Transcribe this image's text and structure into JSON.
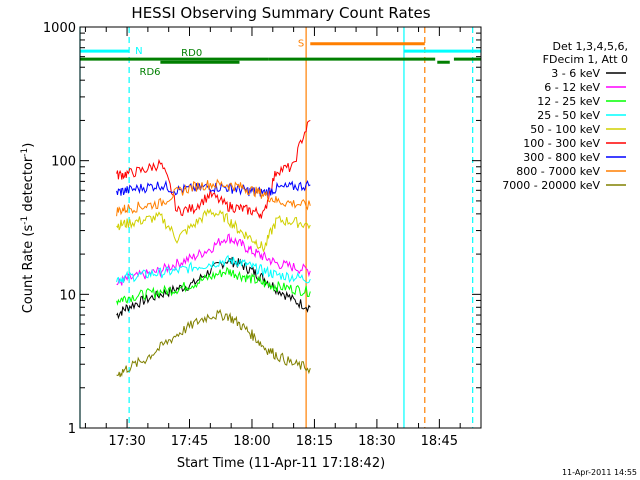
{
  "chart_data": {
    "type": "line",
    "title": "HESSI Observing Summary Count Rates",
    "xlabel": "Start Time (11-Apr-11 17:18:42)",
    "ylabel_parts": [
      "Count Rate (s",
      "-1",
      " detector",
      "-1",
      ")"
    ],
    "yscale": "log",
    "ylim": [
      1,
      1000
    ],
    "yticks": [
      1,
      10,
      100,
      1000
    ],
    "xlim_minutes": [
      1038.7,
      1135.0
    ],
    "xticks": [
      {
        "label": "17:30",
        "minute": 1050
      },
      {
        "label": "17:45",
        "minute": 1065
      },
      {
        "label": "18:00",
        "minute": 1080
      },
      {
        "label": "18:15",
        "minute": 1095
      },
      {
        "label": "18:30",
        "minute": 1110
      },
      {
        "label": "18:45",
        "minute": 1125
      }
    ],
    "legend": {
      "placement": "right",
      "header": [
        "Det 1,3,4,5,6,",
        "FDecim 1, Att 0"
      ],
      "entries": [
        {
          "label": "3 - 6 keV",
          "color": "#000000"
        },
        {
          "label": "6 - 12 keV",
          "color": "#ff00ff"
        },
        {
          "label": "12 - 25 keV",
          "color": "#00ff00"
        },
        {
          "label": "25 - 50 keV",
          "color": "#00ffff"
        },
        {
          "label": "50 - 100 keV",
          "color": "#d0d000"
        },
        {
          "label": "100 - 300 keV",
          "color": "#ff0000"
        },
        {
          "label": "300 - 800 keV",
          "color": "#0000ff"
        },
        {
          "label": "800 - 7000 keV",
          "color": "#ff7f00"
        },
        {
          "label": "7000 - 20000 keV",
          "color": "#808000"
        }
      ]
    },
    "flag_bars": [
      {
        "label": "N",
        "color": "#00ffff",
        "level": 660,
        "label_side": "right_of_first",
        "segments": [
          [
            1038.7,
            1050.5
          ],
          [
            1116.5,
            1135.0
          ]
        ]
      },
      {
        "label": "S",
        "color": "#ff7f00",
        "level": 750,
        "label_side": "left_of_first",
        "segments": [
          [
            1094.0,
            1121.5
          ]
        ]
      },
      {
        "label": "RD0",
        "color": "#007f00",
        "level": 575,
        "label_side": "above_first",
        "segments": [
          [
            1038.7,
            1084.0
          ],
          [
            1084.0,
            1124.0
          ],
          [
            1128.5,
            1135.0
          ]
        ]
      },
      {
        "label": "RD6",
        "color": "#007f00",
        "level": 545,
        "label_side": "below_first",
        "segments": [
          [
            1058.0,
            1077.0
          ],
          [
            1124.5,
            1127.5
          ]
        ]
      }
    ],
    "vertical_lines": [
      {
        "minute": 1038.7,
        "color": "#00ffff",
        "style": "solid"
      },
      {
        "minute": 1050.5,
        "color": "#00ffff",
        "style": "dashed"
      },
      {
        "minute": 1093.0,
        "color": "#ff7f00",
        "style": "solid"
      },
      {
        "minute": 1116.5,
        "color": "#00ffff",
        "style": "solid"
      },
      {
        "minute": 1121.5,
        "color": "#ff7f00",
        "style": "dashed"
      },
      {
        "minute": 1133.0,
        "color": "#00ffff",
        "style": "dashed"
      }
    ],
    "series": [
      {
        "name": "3 - 6 keV",
        "color": "#000000",
        "x": [
          1047.5,
          1050,
          1054,
          1058,
          1062,
          1066,
          1070,
          1074,
          1077,
          1080,
          1083,
          1086,
          1090,
          1094
        ],
        "y": [
          7,
          8,
          9,
          10,
          11,
          12,
          15,
          18,
          17,
          15,
          13,
          11,
          9,
          8
        ]
      },
      {
        "name": "6 - 12 keV",
        "color": "#ff00ff",
        "x": [
          1047.5,
          1050,
          1054,
          1058,
          1062,
          1066,
          1070,
          1074,
          1077,
          1080,
          1083,
          1086,
          1090,
          1094
        ],
        "y": [
          12,
          13,
          14,
          15,
          17,
          19,
          22,
          27,
          24,
          21,
          19,
          17,
          16,
          15
        ]
      },
      {
        "name": "12 - 25 keV",
        "color": "#00ff00",
        "x": [
          1047.5,
          1050,
          1054,
          1058,
          1062,
          1066,
          1070,
          1074,
          1077,
          1080,
          1083,
          1086,
          1090,
          1094
        ],
        "y": [
          9,
          9.5,
          10,
          10.5,
          11,
          12,
          13.5,
          15,
          14,
          13,
          12,
          11.5,
          11,
          10.5
        ]
      },
      {
        "name": "25 - 50 keV",
        "color": "#00ffff",
        "x": [
          1047.5,
          1050,
          1054,
          1058,
          1062,
          1066,
          1070,
          1074,
          1077,
          1080,
          1083,
          1086,
          1090,
          1094
        ],
        "y": [
          13,
          13.5,
          14,
          14.5,
          15,
          16,
          17,
          18,
          17.5,
          16,
          15,
          14,
          13.5,
          13
        ]
      },
      {
        "name": "50 - 100 keV",
        "color": "#d0d000",
        "x": [
          1047.5,
          1050,
          1054,
          1058,
          1062,
          1066,
          1070,
          1074,
          1077,
          1080,
          1083,
          1086,
          1090,
          1094
        ],
        "y": [
          33,
          34,
          36,
          38,
          26,
          33,
          42,
          37,
          30,
          26,
          22,
          36,
          35,
          33
        ]
      },
      {
        "name": "100 - 300 keV",
        "color": "#ff0000",
        "x": [
          1047.5,
          1050,
          1054,
          1058,
          1062,
          1066,
          1070,
          1074,
          1077,
          1080,
          1083,
          1086,
          1090,
          1094
        ],
        "y": [
          78,
          80,
          85,
          95,
          42,
          44,
          56,
          46,
          44,
          42,
          40,
          85,
          90,
          200
        ]
      },
      {
        "name": "300 - 800 keV",
        "color": "#0000ff",
        "x": [
          1047.5,
          1050,
          1054,
          1058,
          1062,
          1066,
          1070,
          1074,
          1077,
          1080,
          1083,
          1086,
          1090,
          1094
        ],
        "y": [
          58,
          60,
          63,
          66,
          60,
          62,
          64,
          63,
          61,
          59,
          58,
          62,
          64,
          66
        ]
      },
      {
        "name": "800 - 7000 keV",
        "color": "#ff7f00",
        "x": [
          1047.5,
          1050,
          1054,
          1058,
          1062,
          1066,
          1070,
          1074,
          1077,
          1080,
          1083,
          1086,
          1090,
          1094
        ],
        "y": [
          42,
          44,
          46,
          48,
          58,
          64,
          67,
          66,
          64,
          60,
          56,
          50,
          48,
          46
        ]
      },
      {
        "name": "7000 - 20000 keV",
        "color": "#808000",
        "x": [
          1047.5,
          1050,
          1054,
          1058,
          1062,
          1066,
          1070,
          1074,
          1077,
          1080,
          1083,
          1086,
          1090,
          1094
        ],
        "y": [
          2.5,
          2.8,
          3.2,
          4,
          5,
          6,
          7,
          7,
          6,
          5,
          4,
          3.5,
          3,
          2.8
        ]
      }
    ]
  },
  "footer": {
    "timestamp": "11-Apr-2011 14:55"
  }
}
